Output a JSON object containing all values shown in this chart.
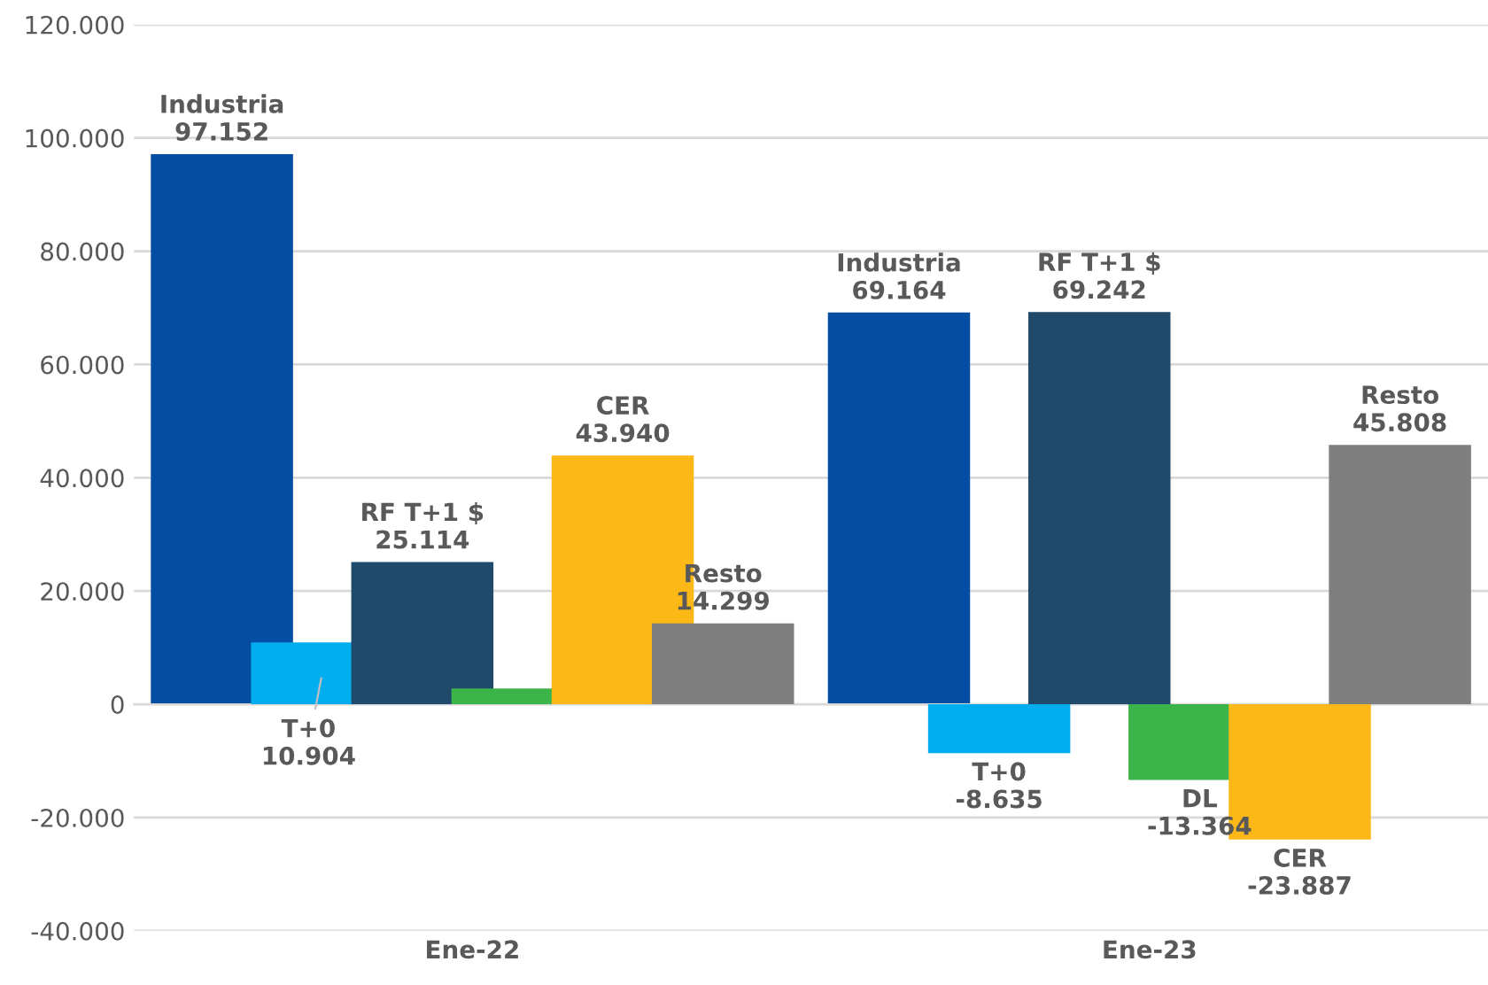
{
  "chart_data": {
    "type": "bar",
    "categories": [
      "Ene-22",
      "Ene-23"
    ],
    "series": [
      {
        "name": "Industria",
        "color": "#034ea2",
        "values": [
          97152,
          69164
        ],
        "value_labels": [
          "97.152",
          "69.164"
        ]
      },
      {
        "name": "T+0",
        "color": "#00aeef",
        "values": [
          10904,
          -8635
        ],
        "value_labels": [
          "10.904",
          "-8.635"
        ]
      },
      {
        "name": "RF T+1 $",
        "color": "#1f4a6b",
        "values": [
          25114,
          69242
        ],
        "value_labels": [
          "25.114",
          "69.242"
        ]
      },
      {
        "name": "DL",
        "color": "#3bb54a",
        "values": [
          2800,
          -13364
        ],
        "value_labels": [
          null,
          "-13.364"
        ]
      },
      {
        "name": "CER",
        "color": "#fbb817",
        "values": [
          43940,
          -23887
        ],
        "value_labels": [
          "43.940",
          "-23.887"
        ]
      },
      {
        "name": "Resto",
        "color": "#7f7f7f",
        "values": [
          14299,
          45808
        ],
        "value_labels": [
          "14.299",
          "45.808"
        ]
      }
    ],
    "ylim": [
      -40000,
      120000
    ],
    "yticks": [
      {
        "value": -40000,
        "label": "-40.000"
      },
      {
        "value": -20000,
        "label": "-20.000"
      },
      {
        "value": 0,
        "label": "0"
      },
      {
        "value": 20000,
        "label": "20.000"
      },
      {
        "value": 40000,
        "label": "40.000"
      },
      {
        "value": 60000,
        "label": "60.000"
      },
      {
        "value": 80000,
        "label": "80.000"
      },
      {
        "value": 100000,
        "label": "100.000"
      },
      {
        "value": 120000,
        "label": "120.000"
      }
    ],
    "grid": "y",
    "legend": false
  }
}
